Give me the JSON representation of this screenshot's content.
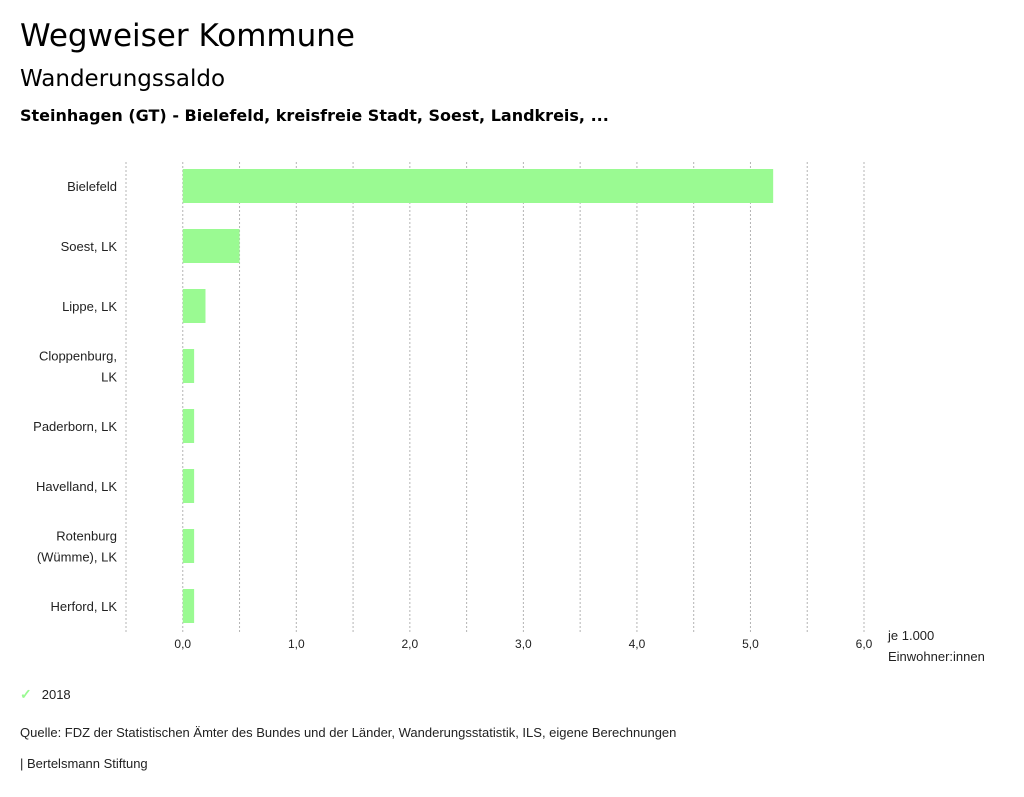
{
  "header": {
    "title": "Wegweiser Kommune",
    "subtitle": "Wanderungssaldo",
    "selection": "Steinhagen (GT) - Bielefeld, kreisfreie Stadt, Soest, Landkreis, ..."
  },
  "chart_data": {
    "type": "bar",
    "orientation": "horizontal",
    "categories": [
      [
        "Bielefeld"
      ],
      [
        "Soest, LK"
      ],
      [
        "Lippe, LK"
      ],
      [
        "Cloppenburg,",
        "LK"
      ],
      [
        "Paderborn, LK"
      ],
      [
        "Havelland, LK"
      ],
      [
        "Rotenburg",
        "(Wümme), LK"
      ],
      [
        "Herford, LK"
      ]
    ],
    "series": [
      {
        "name": "2018",
        "values": [
          5.2,
          0.5,
          0.2,
          0.1,
          0.1,
          0.1,
          0.1,
          0.1
        ],
        "color": "#9afa92"
      }
    ],
    "xlim": [
      -0.5,
      6.0
    ],
    "xticks": [
      0,
      1,
      2,
      3,
      4,
      5,
      6
    ],
    "xtick_labels": [
      "0,0",
      "1,0",
      "2,0",
      "3,0",
      "4,0",
      "5,0",
      "6,0"
    ],
    "grid_step": 0.5,
    "xlabel": [
      "je 1.000",
      "Einwohner:innen"
    ],
    "legend_position": "bottom-left"
  },
  "legend": {
    "label": "2018"
  },
  "footer": {
    "source": "Quelle: FDZ der Statistischen Ämter des Bundes und der Länder, Wanderungsstatistik, ILS, eigene Berechnungen",
    "credit": "| Bertelsmann Stiftung"
  }
}
